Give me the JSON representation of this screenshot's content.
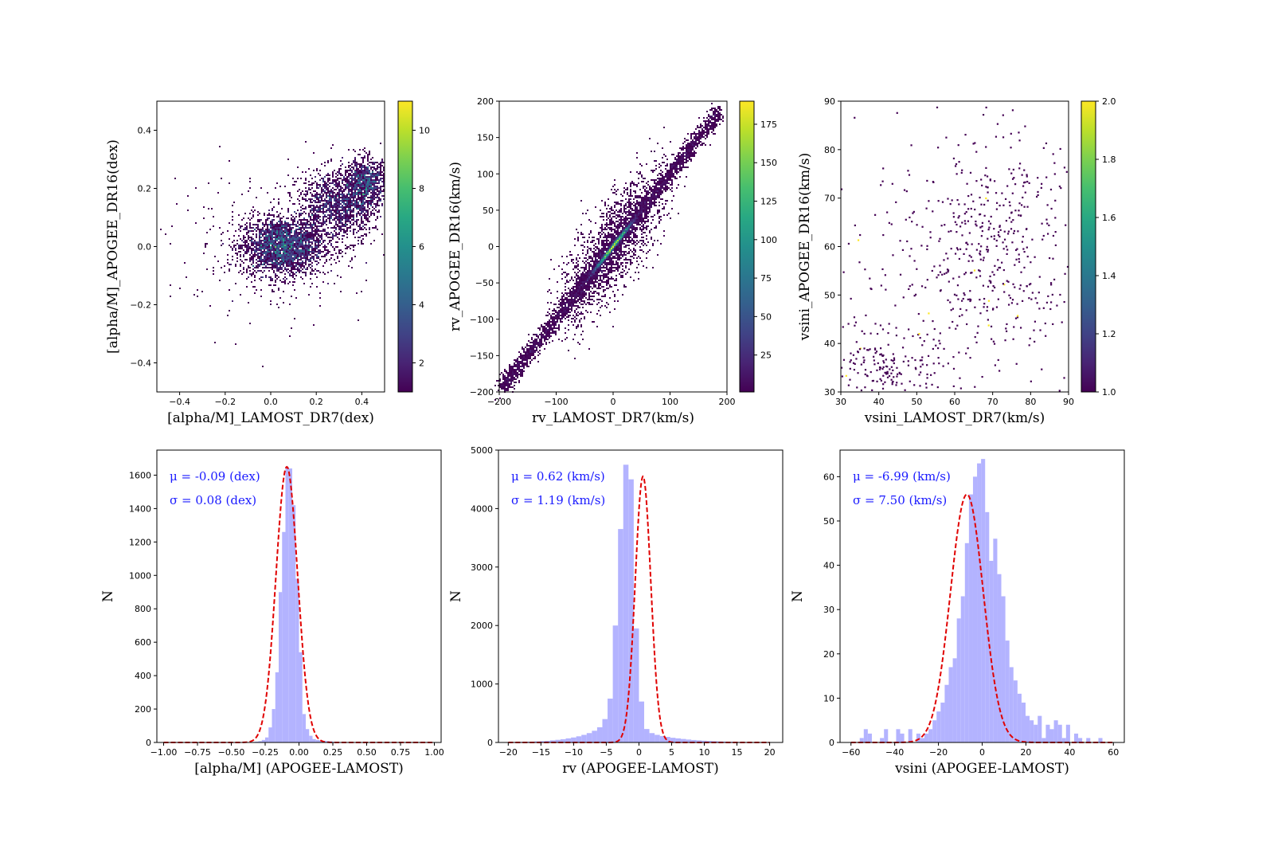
{
  "chart_data": [
    {
      "type": "heatmap",
      "id": "alpha-density",
      "xlabel": "[alpha/M]_LAMOST_DR7(dex)",
      "ylabel": "[alpha/M]_APOGEE_DR16(dex)",
      "xlim": [
        -0.5,
        0.5
      ],
      "ylim": [
        -0.5,
        0.5
      ],
      "xticks": [
        -0.4,
        -0.2,
        0.0,
        0.2,
        0.4
      ],
      "yticks": [
        -0.4,
        -0.2,
        0.0,
        0.2,
        0.4
      ],
      "colorbar": {
        "colormap": "viridis",
        "range": [
          1,
          11
        ],
        "ticks": [
          2,
          4,
          6,
          8,
          10
        ]
      },
      "clusters": [
        {
          "x": 0.05,
          "y": 0.0,
          "sx": 0.09,
          "sy": 0.05,
          "n": 2600
        },
        {
          "x": 0.3,
          "y": 0.14,
          "sx": 0.09,
          "sy": 0.06,
          "n": 1500
        },
        {
          "x": 0.42,
          "y": 0.22,
          "sx": 0.05,
          "sy": 0.04,
          "n": 900
        },
        {
          "x": 0.05,
          "y": 0.0,
          "sx": 0.25,
          "sy": 0.14,
          "n": 250
        }
      ]
    },
    {
      "type": "heatmap",
      "id": "rv-density",
      "xlabel": "rv_LAMOST_DR7(km/s)",
      "ylabel": "rv_APOGEE_DR16(km/s)",
      "xlim": [
        -200,
        200
      ],
      "ylim": [
        -200,
        200
      ],
      "xticks": [
        -200,
        -100,
        0,
        100,
        200
      ],
      "yticks": [
        -200,
        -150,
        -100,
        -50,
        0,
        50,
        100,
        150,
        200
      ],
      "colorbar": {
        "colormap": "viridis",
        "range": [
          1,
          190
        ],
        "ticks": [
          25,
          50,
          75,
          100,
          125,
          150,
          175
        ]
      },
      "diagonal": {
        "from": -195,
        "to": 185,
        "width": 6,
        "n": 3000
      },
      "scatter_band": {
        "from": -110,
        "to": 110,
        "width": 35,
        "n": 2200
      }
    },
    {
      "type": "scatter",
      "id": "vsini-scatter",
      "xlabel": "vsini_LAMOST_DR7(km/s)",
      "ylabel": "vsini_APOGEE_DR16(km/s)",
      "xlim": [
        30,
        90
      ],
      "ylim": [
        30,
        90
      ],
      "xticks": [
        30,
        40,
        50,
        60,
        70,
        80,
        90
      ],
      "yticks": [
        30,
        40,
        50,
        60,
        70,
        80,
        90
      ],
      "colorbar": {
        "colormap": "viridis",
        "range": [
          1.0,
          2.0
        ],
        "ticks": [
          1.0,
          1.2,
          1.4,
          1.6,
          1.8,
          2.0
        ]
      },
      "clusters": [
        {
          "x": 43,
          "y": 35,
          "sx": 6,
          "sy": 3.5,
          "n": 150
        },
        {
          "x": 70,
          "y": 60,
          "sx": 12,
          "sy": 12,
          "n": 450
        },
        {
          "x": 50,
          "y": 50,
          "sx": 14,
          "sy": 16,
          "n": 150
        }
      ]
    },
    {
      "type": "bar",
      "id": "alpha-hist",
      "xlabel": "[alpha/M] (APOGEE-LAMOST)",
      "ylabel": "N",
      "xlim": [
        -1.05,
        1.05
      ],
      "ylim": [
        0,
        1750
      ],
      "xticks": [
        -1.0,
        -0.75,
        -0.5,
        -0.25,
        0.0,
        0.25,
        0.5,
        0.75,
        1.0
      ],
      "xtick_labels": [
        "−1.00",
        "−0.75",
        "−0.50",
        "−0.25",
        "0.00",
        "0.25",
        "0.50",
        "0.75",
        "1.00"
      ],
      "yticks": [
        0,
        200,
        400,
        600,
        800,
        1000,
        1200,
        1400,
        1600
      ],
      "bin_start": -0.5,
      "bin_width": 0.025,
      "values": [
        0,
        0,
        2,
        0,
        0,
        2,
        3,
        5,
        8,
        15,
        30,
        90,
        200,
        420,
        900,
        1260,
        1650,
        1640,
        1420,
        980,
        540,
        170,
        80,
        40,
        20,
        15,
        12,
        10,
        8,
        6,
        4,
        3,
        2,
        2,
        1,
        1,
        0,
        0,
        0,
        0
      ],
      "fit": {
        "mu": -0.09,
        "sigma": 0.08,
        "amplitude": 1650
      },
      "stats": [
        "μ = -0.09 (dex)",
        "σ = 0.08 (dex)"
      ]
    },
    {
      "type": "bar",
      "id": "rv-hist",
      "xlabel": "rv (APOGEE-LAMOST)",
      "ylabel": "N",
      "xlim": [
        -21.5,
        22
      ],
      "ylim": [
        0,
        5000
      ],
      "xticks": [
        -20,
        -15,
        -10,
        -5,
        0,
        5,
        10,
        15,
        20
      ],
      "xtick_labels": [
        "−20",
        "−15",
        "−10",
        "−5",
        "0",
        "5",
        "10",
        "15",
        "20"
      ],
      "yticks": [
        0,
        1000,
        2000,
        3000,
        4000,
        5000
      ],
      "bin_start": -20,
      "bin_width": 0.8,
      "values": [
        5,
        8,
        10,
        12,
        14,
        18,
        22,
        28,
        36,
        45,
        55,
        70,
        85,
        105,
        130,
        160,
        200,
        260,
        400,
        750,
        2000,
        3650,
        4750,
        4500,
        1950,
        700,
        230,
        160,
        130,
        110,
        95,
        80,
        70,
        60,
        50,
        42,
        36,
        30,
        26,
        22,
        18,
        15,
        12,
        10,
        8,
        6,
        5,
        4,
        3,
        2
      ],
      "fit": {
        "mu": 0.62,
        "sigma": 1.19,
        "amplitude": 4550
      },
      "stats": [
        "μ = 0.62 (km/s)",
        "σ = 1.19 (km/s)"
      ]
    },
    {
      "type": "bar",
      "id": "vsini-hist",
      "xlabel": "vsini (APOGEE-LAMOST)",
      "ylabel": "N",
      "xlim": [
        -65,
        65
      ],
      "ylim": [
        0,
        66
      ],
      "xticks": [
        -60,
        -40,
        -20,
        0,
        20,
        40,
        60
      ],
      "xtick_labels": [
        "−60",
        "−40",
        "−20",
        "0",
        "20",
        "40",
        "60"
      ],
      "yticks": [
        0,
        10,
        20,
        30,
        40,
        50,
        60
      ],
      "bin_start": -56,
      "bin_width": 1.85,
      "values": [
        1,
        3,
        2,
        0,
        0,
        1,
        3,
        0,
        0,
        3,
        2,
        0,
        3,
        0,
        2,
        1,
        2,
        3,
        5,
        7,
        9,
        13,
        17,
        19,
        28,
        33,
        45,
        56,
        60,
        63,
        64,
        52,
        41,
        46,
        38,
        33,
        23,
        17,
        14,
        11,
        9,
        6,
        5,
        4,
        6,
        1,
        4,
        3,
        5,
        4,
        1,
        4,
        0,
        2,
        1,
        0,
        1,
        0,
        0,
        1
      ],
      "fit": {
        "mu": -6.99,
        "sigma": 7.5,
        "amplitude": 56
      },
      "stats": [
        "μ = -6.99 (km/s)",
        "σ = 7.50 (km/s)"
      ]
    }
  ]
}
